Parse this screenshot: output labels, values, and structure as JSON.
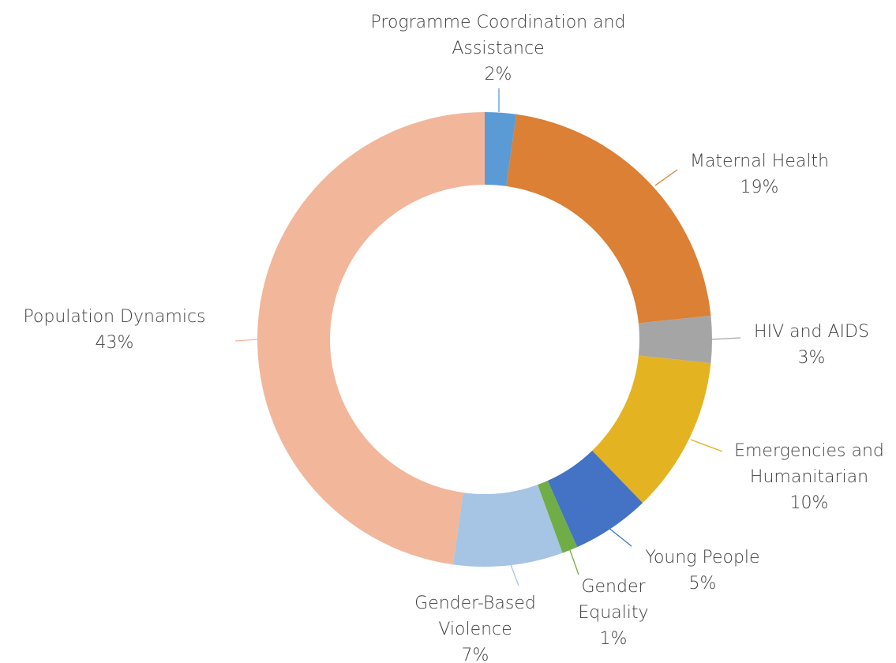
{
  "chart_data": {
    "type": "donut",
    "categories": [
      "Programme Coordination and Assistance",
      "Maternal Health",
      "HIV and AIDS",
      "Emergencies and Humanitarian",
      "Young People",
      "Gender Equality",
      "Gender-Based Violence",
      "Population Dynamics"
    ],
    "values": [
      2,
      19,
      3,
      10,
      5,
      1,
      7,
      43
    ],
    "value_labels": [
      "2%",
      "19%",
      "3%",
      "10%",
      "5%",
      "1%",
      "7%",
      "43%"
    ],
    "colors": [
      "#5b9bd5",
      "#db8035",
      "#a5a5a5",
      "#e3b321",
      "#4472c4",
      "#70ad47",
      "#a6c4e4",
      "#f2b69a"
    ]
  }
}
